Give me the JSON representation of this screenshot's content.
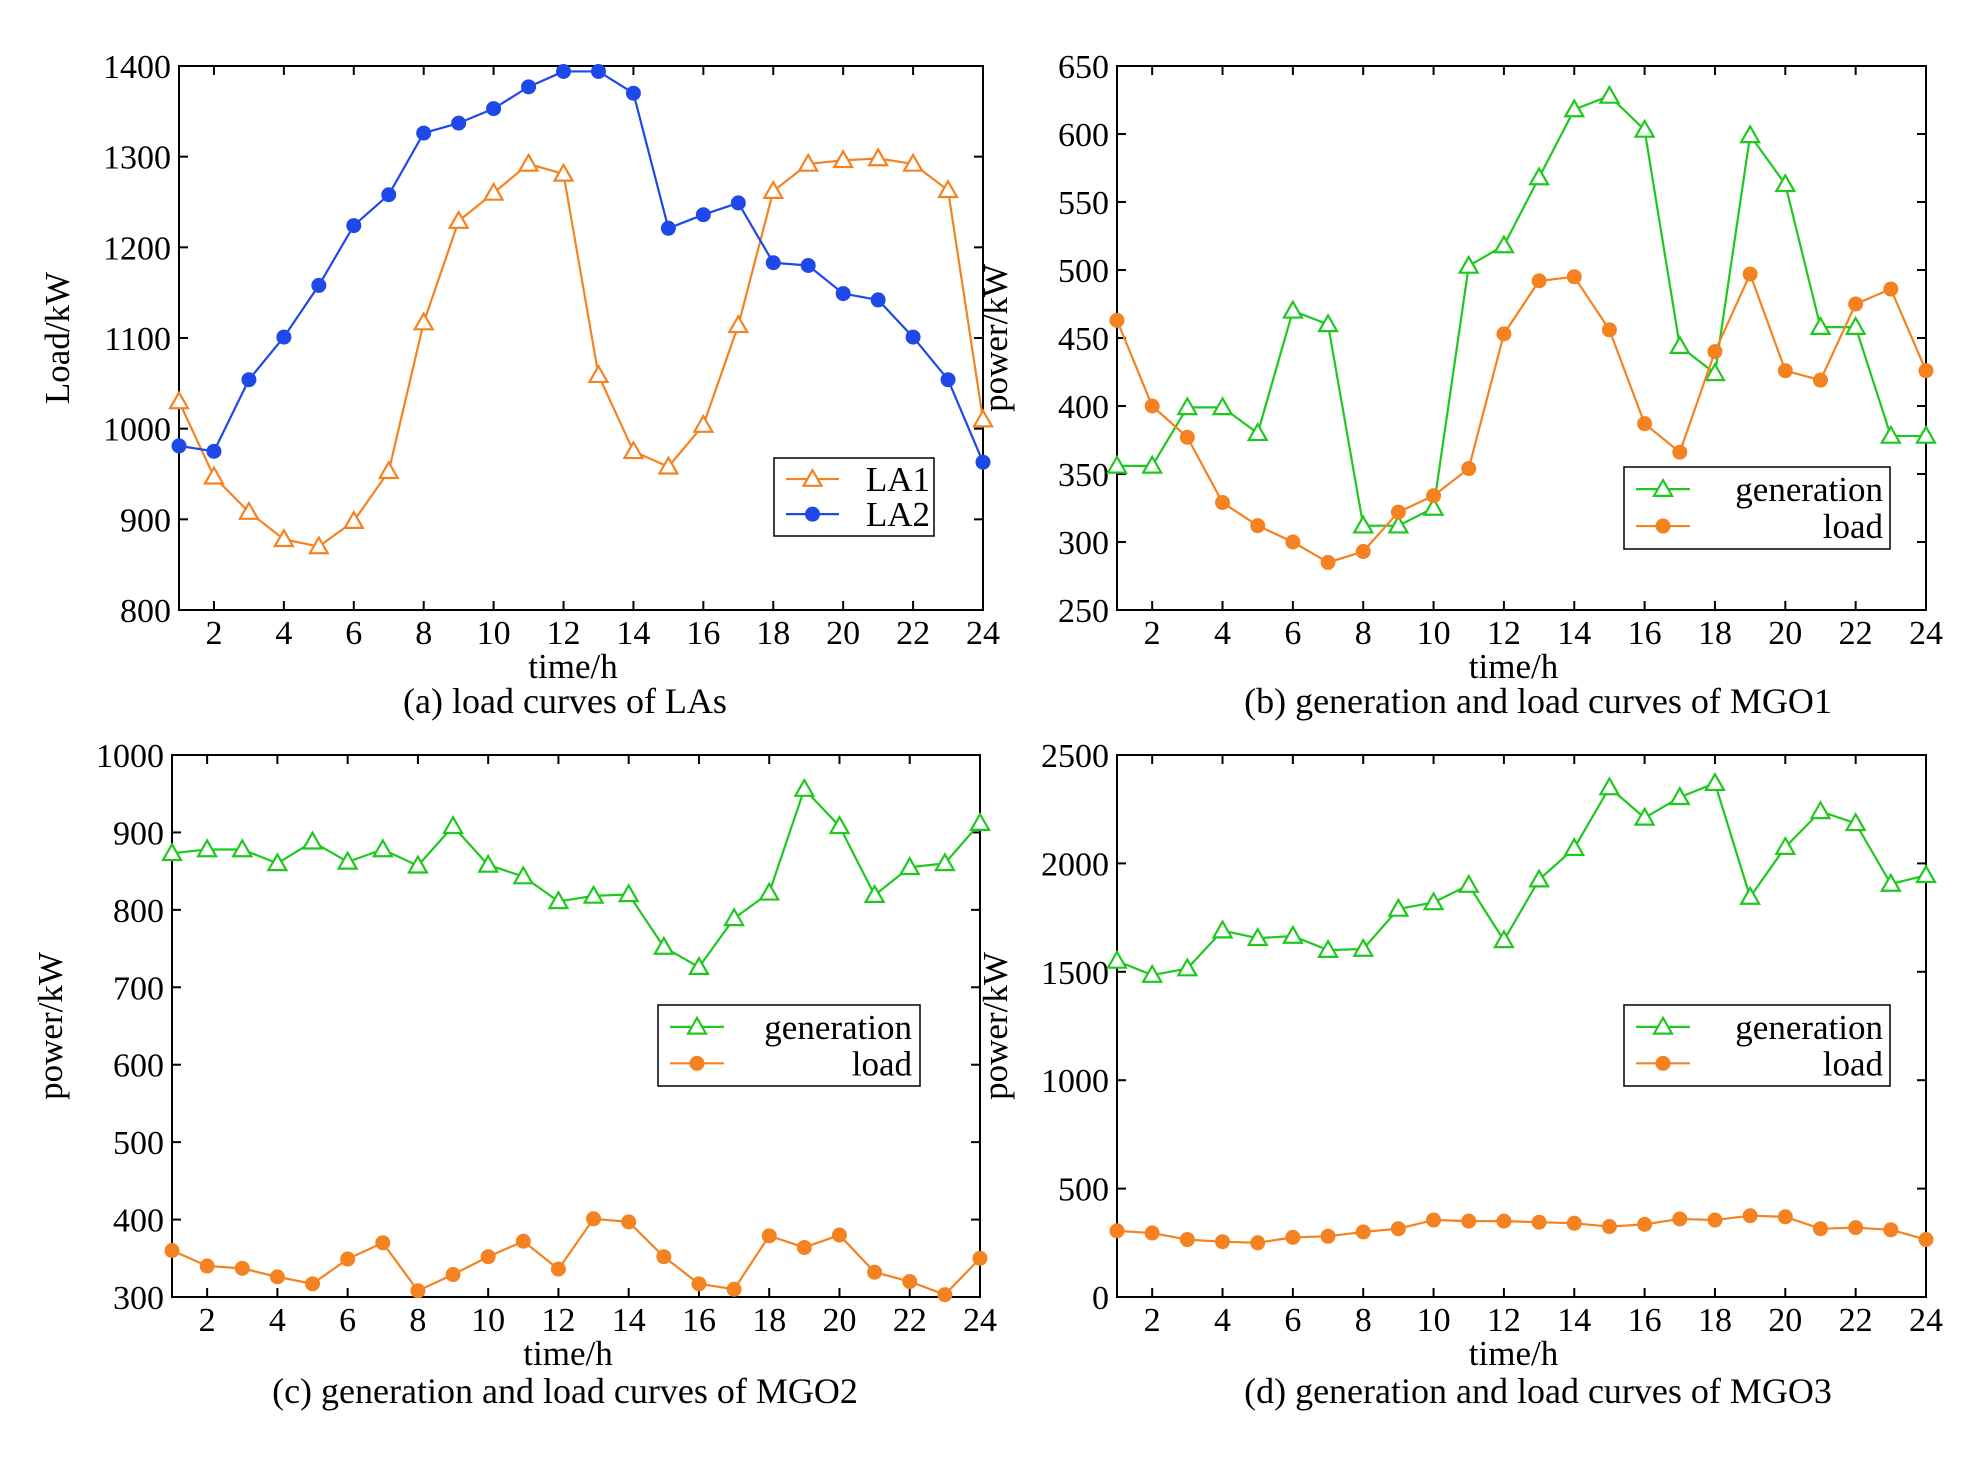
{
  "chart_data": [
    {
      "type": "line",
      "title": "(a) load curves of LAs",
      "xlabel": "time/h",
      "ylabel": "Load/kW",
      "xlim": [
        1,
        24
      ],
      "ylim": [
        800,
        1400
      ],
      "xticks": [
        2,
        4,
        6,
        8,
        10,
        12,
        14,
        16,
        18,
        20,
        22,
        24
      ],
      "yticks": [
        800,
        900,
        1000,
        1100,
        1200,
        1300,
        1400
      ],
      "legend_position": "bottom-right",
      "x": [
        1,
        2,
        3,
        4,
        5,
        6,
        7,
        8,
        9,
        10,
        11,
        12,
        13,
        14,
        15,
        16,
        17,
        18,
        19,
        20,
        21,
        22,
        23,
        24
      ],
      "series": [
        {
          "name": "LA1",
          "marker": "triangle-open",
          "color": "#f58220",
          "values": [
            1030,
            947,
            908,
            878,
            870,
            898,
            953,
            1117,
            1229,
            1260,
            1292,
            1281,
            1059,
            975,
            958,
            1004,
            1114,
            1262,
            1292,
            1296,
            1298,
            1292,
            1263,
            1010
          ]
        },
        {
          "name": "LA2",
          "marker": "circle-filled",
          "color": "#1f48e8",
          "values": [
            981,
            975,
            1054,
            1101,
            1158,
            1224,
            1258,
            1326,
            1337,
            1353,
            1377,
            1394,
            1394,
            1370,
            1221,
            1236,
            1249,
            1183,
            1180,
            1149,
            1142,
            1101,
            1054,
            963
          ]
        }
      ]
    },
    {
      "type": "line",
      "title": "(b) generation and load curves of MGO1",
      "xlabel": "time/h",
      "ylabel": "power/kW",
      "xlim": [
        1,
        24
      ],
      "ylim": [
        250,
        650
      ],
      "xticks": [
        2,
        4,
        6,
        8,
        10,
        12,
        14,
        16,
        18,
        20,
        22,
        24
      ],
      "yticks": [
        250,
        300,
        350,
        400,
        450,
        500,
        550,
        600,
        650
      ],
      "legend_position": "bottom-right",
      "x": [
        1,
        2,
        3,
        4,
        5,
        6,
        7,
        8,
        9,
        10,
        11,
        12,
        13,
        14,
        15,
        16,
        17,
        18,
        19,
        20,
        21,
        22,
        23,
        24
      ],
      "series": [
        {
          "name": "generation",
          "marker": "triangle-open",
          "color": "#1ec81e",
          "values": [
            356,
            356,
            399,
            399,
            380,
            470,
            460,
            312,
            312,
            325,
            503,
            518,
            568,
            618,
            628,
            603,
            444,
            424,
            599,
            563,
            458,
            458,
            378,
            378
          ]
        },
        {
          "name": "load",
          "marker": "circle-filled",
          "color": "#f58220",
          "values": [
            463,
            400,
            377,
            329,
            312,
            300,
            285,
            293,
            322,
            334,
            354,
            453,
            492,
            495,
            456,
            387,
            366,
            440,
            497,
            426,
            419,
            475,
            486,
            426
          ]
        }
      ]
    },
    {
      "type": "line",
      "title": "(c) generation and load curves of MGO2",
      "xlabel": "time/h",
      "ylabel": "power/kW",
      "xlim": [
        1,
        24
      ],
      "ylim": [
        300,
        1000
      ],
      "xticks": [
        2,
        4,
        6,
        8,
        10,
        12,
        14,
        16,
        18,
        20,
        22,
        24
      ],
      "yticks": [
        300,
        400,
        500,
        600,
        700,
        800,
        900,
        1000
      ],
      "legend_position": "right",
      "x": [
        1,
        2,
        3,
        4,
        5,
        6,
        7,
        8,
        9,
        10,
        11,
        12,
        13,
        14,
        15,
        16,
        17,
        18,
        19,
        20,
        21,
        22,
        23,
        24
      ],
      "series": [
        {
          "name": "generation",
          "marker": "triangle-open",
          "color": "#1ec81e",
          "values": [
            873,
            878,
            878,
            860,
            888,
            862,
            878,
            857,
            908,
            858,
            843,
            811,
            818,
            820,
            752,
            726,
            789,
            822,
            956,
            908,
            819,
            855,
            860,
            912
          ]
        },
        {
          "name": "load",
          "marker": "circle-filled",
          "color": "#f58220",
          "values": [
            360,
            340,
            337,
            326,
            317,
            349,
            370,
            308,
            329,
            352,
            372,
            336,
            401,
            397,
            352,
            317,
            310,
            379,
            364,
            380,
            332,
            320,
            303,
            350
          ]
        }
      ]
    },
    {
      "type": "line",
      "title": "(d) generation and load curves of MGO3",
      "xlabel": "time/h",
      "ylabel": "power/kW",
      "xlim": [
        1,
        24
      ],
      "ylim": [
        0,
        2500
      ],
      "xticks": [
        2,
        4,
        6,
        8,
        10,
        12,
        14,
        16,
        18,
        20,
        22,
        24
      ],
      "yticks": [
        0,
        500,
        1000,
        1500,
        2000,
        2500
      ],
      "legend_position": "right",
      "x": [
        1,
        2,
        3,
        4,
        5,
        6,
        7,
        8,
        9,
        10,
        11,
        12,
        13,
        14,
        15,
        16,
        17,
        18,
        19,
        20,
        21,
        22,
        23,
        24
      ],
      "series": [
        {
          "name": "generation",
          "marker": "triangle-open",
          "color": "#1ec81e",
          "values": [
            1550,
            1485,
            1515,
            1690,
            1655,
            1665,
            1600,
            1605,
            1790,
            1820,
            1900,
            1645,
            1925,
            2070,
            2350,
            2210,
            2305,
            2370,
            1845,
            2075,
            2240,
            2185,
            1905,
            1945
          ]
        },
        {
          "name": "load",
          "marker": "circle-filled",
          "color": "#f58220",
          "values": [
            305,
            295,
            265,
            255,
            250,
            275,
            280,
            300,
            315,
            355,
            350,
            350,
            345,
            340,
            325,
            335,
            360,
            355,
            375,
            370,
            315,
            320,
            310,
            265
          ]
        }
      ]
    }
  ]
}
